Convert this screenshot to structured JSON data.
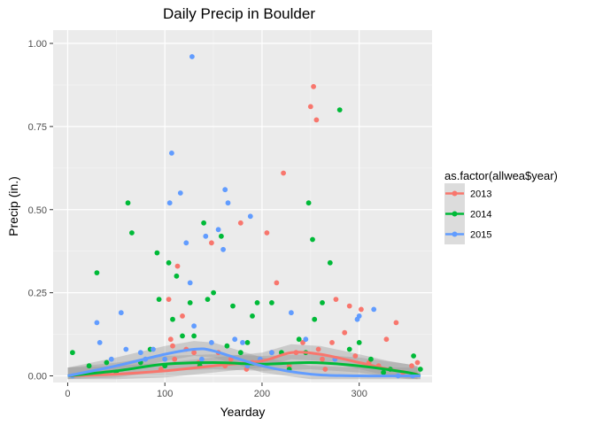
{
  "chart_data": {
    "type": "scatter",
    "title": "Daily Precip in Boulder",
    "xlabel": "Yearday",
    "ylabel": "Precip (in.)",
    "xlim": [
      -15,
      375
    ],
    "ylim": [
      -0.02,
      1.04
    ],
    "xticks": [
      0,
      100,
      200,
      300
    ],
    "xtick_labels": [
      "0",
      "100",
      "200",
      "300"
    ],
    "yticks": [
      0,
      0.25,
      0.5,
      0.75,
      1.0
    ],
    "ytick_labels": [
      "0.00",
      "0.25",
      "0.50",
      "0.75",
      "1.00"
    ],
    "grid": true,
    "legend": {
      "title": "as.factor(allwea$year)",
      "position": "right"
    },
    "series": [
      {
        "name": "2013",
        "color": "#F8766D",
        "points": [
          [
            96,
            0.02
          ],
          [
            104,
            0.23
          ],
          [
            106,
            0.11
          ],
          [
            108,
            0.09
          ],
          [
            110,
            0.05
          ],
          [
            113,
            0.33
          ],
          [
            118,
            0.18
          ],
          [
            122,
            0.08
          ],
          [
            130,
            0.07
          ],
          [
            135,
            0.04
          ],
          [
            148,
            0.4
          ],
          [
            155,
            0.07
          ],
          [
            162,
            0.03
          ],
          [
            168,
            0.05
          ],
          [
            178,
            0.46
          ],
          [
            184,
            0.02
          ],
          [
            190,
            0.04
          ],
          [
            205,
            0.43
          ],
          [
            210,
            0.07
          ],
          [
            215,
            0.28
          ],
          [
            222,
            0.61
          ],
          [
            228,
            0.03
          ],
          [
            235,
            0.07
          ],
          [
            242,
            0.1
          ],
          [
            250,
            0.81
          ],
          [
            253,
            0.87
          ],
          [
            256,
            0.77
          ],
          [
            258,
            0.08
          ],
          [
            262,
            0.05
          ],
          [
            265,
            0.02
          ],
          [
            272,
            0.1
          ],
          [
            276,
            0.23
          ],
          [
            285,
            0.13
          ],
          [
            290,
            0.21
          ],
          [
            296,
            0.06
          ],
          [
            302,
            0.2
          ],
          [
            310,
            0.04
          ],
          [
            320,
            0.03
          ],
          [
            328,
            0.11
          ],
          [
            338,
            0.16
          ],
          [
            345,
            0.01
          ],
          [
            354,
            0.03
          ],
          [
            360,
            0.04
          ]
        ],
        "trend": [
          [
            0,
            0.0
          ],
          [
            50,
            0.005
          ],
          [
            100,
            0.015
          ],
          [
            150,
            0.03
          ],
          [
            200,
            0.045
          ],
          [
            230,
            0.07
          ],
          [
            260,
            0.065
          ],
          [
            300,
            0.04
          ],
          [
            330,
            0.02
          ],
          [
            360,
            0.005
          ]
        ]
      },
      {
        "name": "2014",
        "color": "#00BA38",
        "points": [
          [
            5,
            0.07
          ],
          [
            22,
            0.03
          ],
          [
            30,
            0.31
          ],
          [
            40,
            0.04
          ],
          [
            50,
            0.01
          ],
          [
            62,
            0.52
          ],
          [
            66,
            0.43
          ],
          [
            75,
            0.04
          ],
          [
            85,
            0.08
          ],
          [
            92,
            0.37
          ],
          [
            94,
            0.23
          ],
          [
            100,
            0.03
          ],
          [
            104,
            0.34
          ],
          [
            108,
            0.17
          ],
          [
            112,
            0.3
          ],
          [
            118,
            0.12
          ],
          [
            126,
            0.22
          ],
          [
            130,
            0.12
          ],
          [
            136,
            0.03
          ],
          [
            140,
            0.46
          ],
          [
            144,
            0.23
          ],
          [
            150,
            0.25
          ],
          [
            158,
            0.42
          ],
          [
            164,
            0.09
          ],
          [
            170,
            0.21
          ],
          [
            178,
            0.07
          ],
          [
            185,
            0.1
          ],
          [
            190,
            0.18
          ],
          [
            195,
            0.22
          ],
          [
            210,
            0.22
          ],
          [
            220,
            0.07
          ],
          [
            228,
            0.02
          ],
          [
            238,
            0.11
          ],
          [
            245,
            0.07
          ],
          [
            248,
            0.52
          ],
          [
            252,
            0.41
          ],
          [
            254,
            0.17
          ],
          [
            262,
            0.22
          ],
          [
            270,
            0.34
          ],
          [
            280,
            0.8
          ],
          [
            290,
            0.08
          ],
          [
            300,
            0.1
          ],
          [
            312,
            0.05
          ],
          [
            325,
            0.01
          ],
          [
            332,
            0.02
          ],
          [
            356,
            0.06
          ],
          [
            363,
            0.02
          ]
        ],
        "trend": [
          [
            0,
            0.0
          ],
          [
            50,
            0.015
          ],
          [
            100,
            0.035
          ],
          [
            150,
            0.04
          ],
          [
            200,
            0.035
          ],
          [
            250,
            0.04
          ],
          [
            300,
            0.03
          ],
          [
            350,
            0.01
          ],
          [
            363,
            0.0
          ]
        ]
      },
      {
        "name": "2015",
        "color": "#619CFF",
        "points": [
          [
            5,
            0.0
          ],
          [
            30,
            0.16
          ],
          [
            33,
            0.1
          ],
          [
            45,
            0.05
          ],
          [
            55,
            0.19
          ],
          [
            60,
            0.08
          ],
          [
            75,
            0.07
          ],
          [
            80,
            0.05
          ],
          [
            88,
            0.08
          ],
          [
            100,
            0.05
          ],
          [
            107,
            0.67
          ],
          [
            105,
            0.52
          ],
          [
            116,
            0.55
          ],
          [
            122,
            0.4
          ],
          [
            126,
            0.28
          ],
          [
            128,
            0.96
          ],
          [
            130,
            0.15
          ],
          [
            138,
            0.05
          ],
          [
            142,
            0.42
          ],
          [
            148,
            0.1
          ],
          [
            155,
            0.44
          ],
          [
            160,
            0.38
          ],
          [
            162,
            0.56
          ],
          [
            165,
            0.52
          ],
          [
            172,
            0.11
          ],
          [
            180,
            0.1
          ],
          [
            185,
            0.03
          ],
          [
            188,
            0.48
          ],
          [
            198,
            0.05
          ],
          [
            210,
            0.07
          ],
          [
            230,
            0.19
          ],
          [
            245,
            0.11
          ],
          [
            275,
            0.05
          ],
          [
            298,
            0.17
          ],
          [
            300,
            0.18
          ],
          [
            315,
            0.2
          ],
          [
            340,
            0.0
          ],
          [
            355,
            0.0
          ]
        ],
        "trend": [
          [
            0,
            0.0
          ],
          [
            50,
            0.03
          ],
          [
            100,
            0.065
          ],
          [
            130,
            0.08
          ],
          [
            150,
            0.075
          ],
          [
            200,
            0.03
          ],
          [
            250,
            0.005
          ],
          [
            300,
            0.0
          ],
          [
            363,
            0.0
          ]
        ]
      }
    ]
  }
}
